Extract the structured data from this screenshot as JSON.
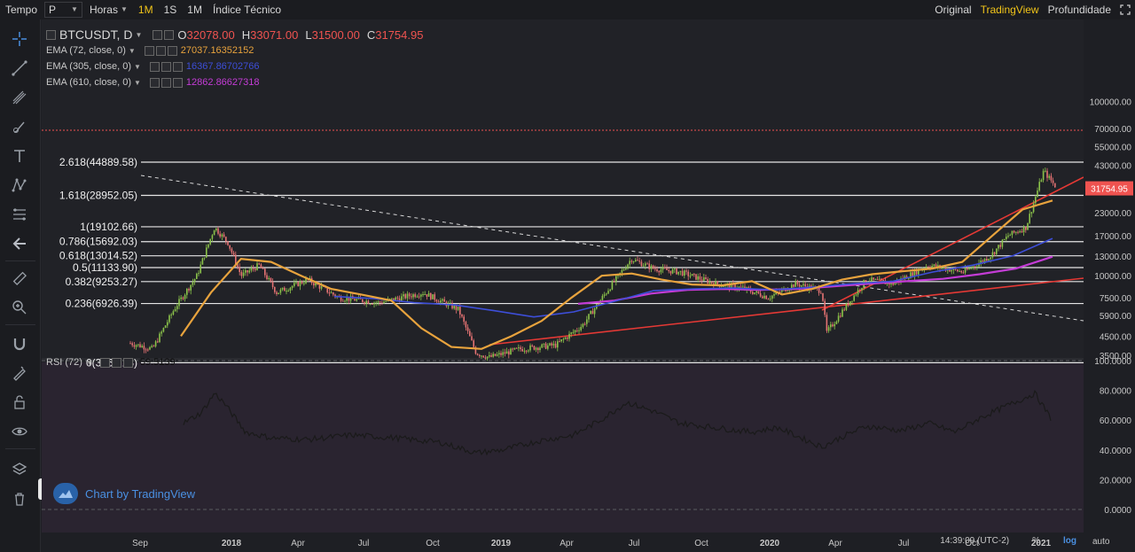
{
  "topbar": {
    "time_label": "Tempo",
    "period_value": "P",
    "hours_label": "Horas",
    "interval_1m": "1M",
    "interval_1s": "1S",
    "interval_1m_b": "1M",
    "indicators_label": "Índice Técnico",
    "view_original": "Original",
    "view_tradingview": "TradingView",
    "view_depth": "Profundidade",
    "fullscreen_icon": "expand-icon"
  },
  "legend": {
    "symbol": "BTCUSDT, D",
    "open_label": "O",
    "open": "32078.00",
    "high_label": "H",
    "high": "33071.00",
    "low_label": "L",
    "low": "31500.00",
    "close_label": "C",
    "close": "31754.95",
    "ema72_label": "EMA (72, close, 0)",
    "ema72_value": "27037.16352152",
    "ema305_label": "EMA (305, close, 0)",
    "ema305_value": "16367.86702766",
    "ema610_label": "EMA (610, close, 0)",
    "ema610_value": "12862.86627318"
  },
  "rsi": {
    "label": "RSI (72)",
    "value": "59.5139"
  },
  "watermark": {
    "text": "Chart by TradingView"
  },
  "colors": {
    "ema72": "#e8a33d",
    "ema305": "#3d4ed8",
    "ema610": "#c43cd6",
    "price_red": "#ef5350",
    "trend_red": "#e53935",
    "fib_white": "#e6e6e6",
    "rsi_line": "#1a1a1a",
    "rsi_bg": "#2a2430",
    "tv_yellow": "#f0c419"
  },
  "chart_data": {
    "type": "line",
    "series": [
      {
        "name": "EMA (72, close, 0)",
        "values": [
          4500,
          8000,
          12500,
          12000,
          10000,
          8400,
          7800,
          7200,
          5000,
          3900,
          3800,
          4500,
          5500,
          7500,
          10000,
          10300,
          9500,
          8900,
          8800,
          9300,
          7800,
          8400,
          9500,
          10200,
          10600,
          11000,
          12000,
          17000,
          24000,
          27037
        ]
      },
      {
        "name": "EMA (305, close, 0)",
        "values": [
          7600,
          7400,
          7000,
          6800,
          6300,
          5800,
          6200,
          7100,
          8200,
          8400,
          8500,
          8300,
          8600,
          9000,
          9300,
          10500,
          11500,
          13000,
          16367
        ]
      },
      {
        "name": "EMA (610, close, 0)",
        "values": [
          6900,
          7200,
          7900,
          8300,
          8400,
          8300,
          8400,
          8700,
          9000,
          9300,
          9600,
          10200,
          11000,
          12862
        ]
      }
    ],
    "fib_levels": [
      {
        "label": "2.618(44889.58)",
        "value": 44889.58
      },
      {
        "label": "1.618(28952.05)",
        "value": 28952.05
      },
      {
        "label": "1(19102.66)",
        "value": 19102.66
      },
      {
        "label": "0.786(15692.03)",
        "value": 15692.03
      },
      {
        "label": "0.618(13014.52)",
        "value": 13014.52
      },
      {
        "label": "0.5(11133.90)",
        "value": 11133.9
      },
      {
        "label": "0.382(9253.27)",
        "value": 9253.27
      },
      {
        "label": "0.236(6926.39)",
        "value": 6926.39
      },
      {
        "label": "0(3165.13)",
        "value": 3165.13
      }
    ],
    "y_ticks": [
      "100000.00",
      "70000.00",
      "55000.00",
      "43000.00",
      "31754.95",
      "23000.00",
      "17000.00",
      "13000.00",
      "10000.00",
      "7500.00",
      "5900.00",
      "4500.00",
      "3500.00"
    ],
    "rsi_ticks": [
      "100.0000",
      "80.0000",
      "60.0000",
      "40.0000",
      "20.0000",
      "0.0000"
    ],
    "x_ticks": [
      "Sep",
      "2018",
      "Apr",
      "Jul",
      "Oct",
      "2019",
      "Apr",
      "Jul",
      "Oct",
      "2020",
      "Apr",
      "Jul",
      "Oct",
      "2021"
    ],
    "y_scale": "log",
    "grid": false,
    "legend_placement": "top-left"
  },
  "time_axis": {
    "timestamp": "14:39:09 (UTC-2)",
    "percent_label": "%",
    "log_label": "log",
    "auto_label": "auto"
  }
}
